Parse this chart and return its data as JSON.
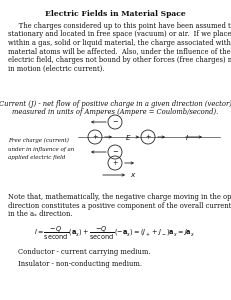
{
  "title": "Electric Fields in Material Space",
  "para1_indent": "     The charges considered up to this point have been assumed to be",
  "para1_lines": [
    "     The charges considered up to this point have been assumed to be",
    "stationary and located in free space (vacuum) or air.  If we place charge",
    "within a gas, solid or liquid material, the charge associated with the",
    "material atoms will be affected.  Also, under the influence of the applied",
    "electric field, charges not bound by other forces (free charges) may be set",
    "in motion (electric current)."
  ],
  "current_line1": "Current (J) - net flow of positive charge in a given direction (vector)",
  "current_line2": "measured in units of Amperes (Ampere = Coulomb/second).",
  "diagram_label_lines": [
    "Free charge (current)",
    "under in influence of an",
    "applied electric field"
  ],
  "note_lines": [
    "Note that, mathematically, the negative charge moving in the opposite",
    "direction constitutes a positive component of the overall current flowing",
    "in the aₓ direction."
  ],
  "conductor_line": "Conductor - current carrying medium.",
  "insulator_line": "Insulator - non-conducting medium.",
  "bg_color": "#ffffff",
  "text_color": "#111111",
  "font_size": 5.2
}
